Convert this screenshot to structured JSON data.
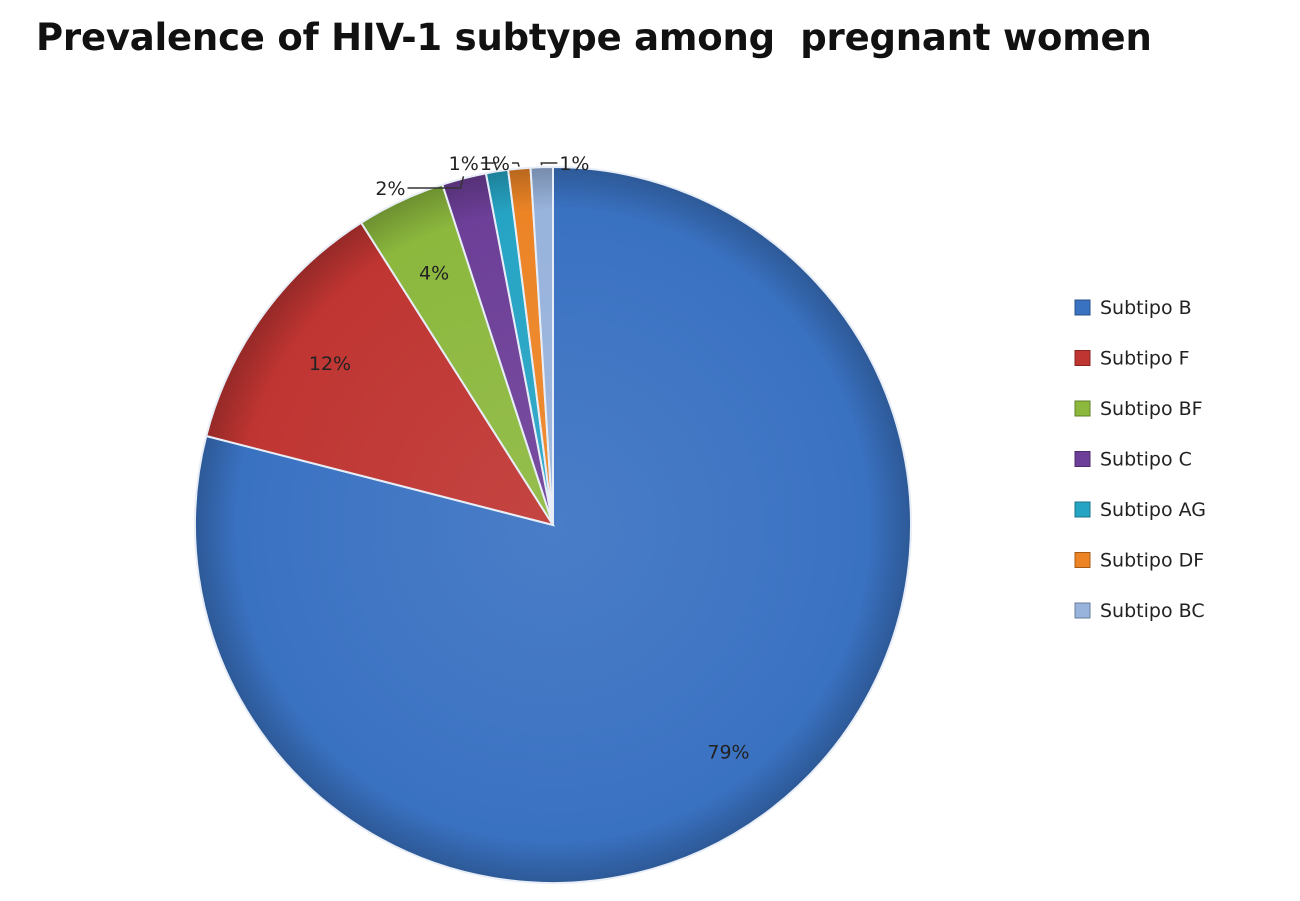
{
  "chart_data": {
    "type": "pie",
    "title": "Prevalence of HIV-1 subtype among  pregnant women",
    "categories": [
      "Subtipo B",
      "Subtipo F",
      "Subtipo BF",
      "Subtipo C",
      "Subtipo AG",
      "Subtipo DF",
      "Subtipo BC"
    ],
    "values": [
      79,
      12,
      4,
      2,
      1,
      1,
      1
    ],
    "data_labels": [
      "79%",
      "12%",
      "4%",
      "2%",
      "1%",
      "1%",
      "1%"
    ],
    "colors": [
      "#3a72c2",
      "#bf3532",
      "#8cb83e",
      "#6d3f98",
      "#26a4c4",
      "#ec8426",
      "#98b3dc"
    ],
    "legend_position": "right",
    "style": "3d-shaded"
  }
}
